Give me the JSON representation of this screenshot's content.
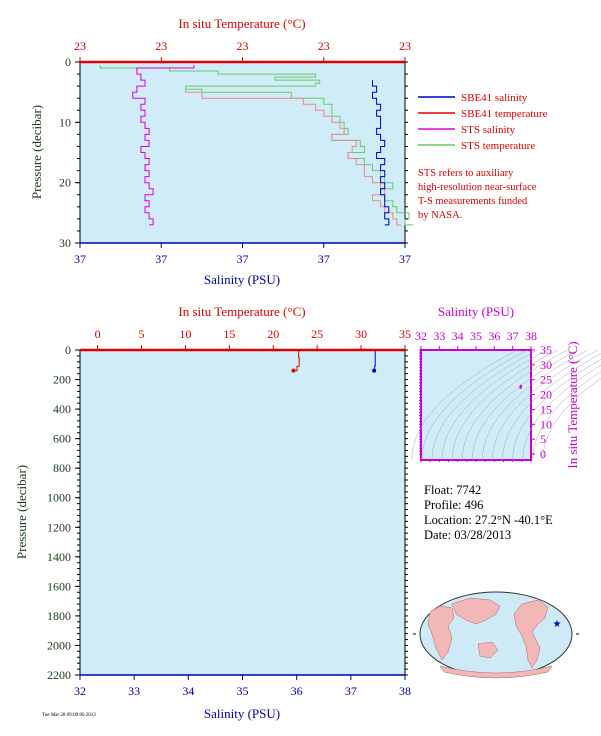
{
  "colors": {
    "sbe_salinity": "#0000cc",
    "sbe_temperature": "#dd0000",
    "sts_salinity": "#dd00dd",
    "sts_temperature": "#66cc66",
    "plot_bg": "#d0ecf8",
    "temp_axis": "#dd0000",
    "sal_axis": "#0000aa",
    "ts_axis": "#cc00cc",
    "land": "#f2b8b8",
    "ocean": "#cfeaf7"
  },
  "legend": {
    "items": [
      {
        "label": "SBE41 salinity",
        "color": "#0000cc"
      },
      {
        "label": "SBE41 temperature",
        "color": "#dd0000"
      },
      {
        "label": "STS salinity",
        "color": "#dd00dd"
      },
      {
        "label": "STS temperature",
        "color": "#66cc66"
      }
    ],
    "note_lines": [
      "STS refers to auxiliary",
      "high-resolution near-surface",
      "T-S measurements funded",
      "by NASA."
    ]
  },
  "info": {
    "float": "Float:  7742",
    "profile": "Profile:  496",
    "location": "Location:  27.2°N  -40.1°E",
    "date": "Date:  03/28/2013"
  },
  "footer_text": "Tue Mar 28 09:00:00 2013",
  "chart_data": [
    {
      "type": "line",
      "name": "near-surface profile",
      "top_axis_label": "In situ Temperature (°C)",
      "top_ticks": [
        "23",
        "23",
        "23",
        "23",
        "23"
      ],
      "bottom_axis_label": "Salinity (PSU)",
      "bottom_ticks": [
        "37",
        "37",
        "37",
        "37",
        "37"
      ],
      "ylabel": "Pressure (decibar)",
      "yticks": [
        "0",
        "10",
        "20",
        "30"
      ],
      "ylim": [
        30,
        0
      ],
      "temp_range": [
        22.4,
        23.2
      ],
      "sal_range": [
        36.6,
        37.4
      ],
      "series": [
        {
          "name": "STS temperature",
          "axis": "temp",
          "color": "#66cc66",
          "p": [
            0.5,
            1,
            1.5,
            2,
            2.5,
            3,
            3.5,
            4,
            4.5,
            5,
            6,
            7,
            8,
            9,
            10,
            11,
            12,
            13,
            14,
            15,
            16,
            17,
            18,
            19,
            20,
            21,
            22,
            23,
            24,
            25,
            26,
            27
          ],
          "v": [
            22.45,
            22.62,
            22.74,
            22.98,
            22.88,
            22.99,
            22.98,
            22.66,
            22.7,
            22.92,
            23.0,
            23.02,
            23.02,
            23.04,
            23.05,
            23.06,
            23.02,
            23.09,
            23.1,
            23.06,
            23.1,
            23.12,
            23.14,
            23.15,
            23.17,
            23.14,
            23.15,
            23.17,
            23.18,
            23.21,
            23.2,
            23.22
          ]
        },
        {
          "name": "SBE41 temperature",
          "axis": "temp",
          "color": "#ee8888",
          "p": [
            4.5,
            5,
            6,
            7,
            8,
            9,
            10,
            11,
            12,
            13,
            14,
            15,
            16,
            17,
            18,
            19,
            20,
            21,
            22,
            23,
            24,
            25,
            26,
            27
          ],
          "v": [
            22.66,
            22.7,
            22.95,
            22.98,
            23.0,
            23.02,
            23.04,
            23.05,
            23.02,
            23.08,
            23.07,
            23.06,
            23.08,
            23.1,
            23.1,
            23.12,
            23.14,
            23.15,
            23.12,
            23.14,
            23.15,
            23.17,
            23.18,
            23.19
          ]
        },
        {
          "name": "STS salinity",
          "axis": "sal",
          "color": "#dd00dd",
          "p": [
            0.5,
            1,
            2,
            3,
            4,
            5,
            6,
            7,
            8,
            9,
            10,
            11,
            12,
            13,
            14,
            15,
            16,
            17,
            18,
            19,
            20,
            21,
            22,
            23,
            24,
            25,
            26,
            27
          ],
          "v": [
            36.88,
            36.74,
            36.75,
            36.76,
            36.74,
            36.73,
            36.76,
            36.75,
            36.76,
            36.75,
            36.76,
            36.77,
            36.76,
            36.77,
            36.75,
            36.76,
            36.77,
            36.76,
            36.77,
            36.76,
            36.77,
            36.78,
            36.76,
            36.77,
            36.76,
            36.77,
            36.78,
            36.77
          ]
        },
        {
          "name": "SBE41 salinity",
          "axis": "sal",
          "color": "#0000cc",
          "p": [
            3,
            4,
            5,
            6,
            7,
            8,
            9,
            10,
            11,
            12,
            13,
            14,
            15,
            16,
            17,
            18,
            19,
            20,
            21,
            22,
            23,
            24,
            25,
            26,
            27
          ],
          "v": [
            37.32,
            37.33,
            37.32,
            37.33,
            37.34,
            37.33,
            37.34,
            37.34,
            37.33,
            37.34,
            37.35,
            37.34,
            37.33,
            37.35,
            37.34,
            37.35,
            37.34,
            37.35,
            37.34,
            37.35,
            37.35,
            37.36,
            37.35,
            37.36,
            37.35
          ]
        }
      ]
    },
    {
      "type": "line",
      "name": "full profile",
      "top_axis_label": "In situ Temperature (°C)",
      "top_ticks": [
        "0",
        "5",
        "10",
        "15",
        "20",
        "25",
        "30",
        "35"
      ],
      "bottom_axis_label": "Salinity (PSU)",
      "bottom_ticks": [
        "32",
        "33",
        "34",
        "35",
        "36",
        "37",
        "38"
      ],
      "ylabel": "Pressure (decibar)",
      "yticks": [
        "0",
        "200",
        "400",
        "600",
        "800",
        "1000",
        "1200",
        "1400",
        "1600",
        "1800",
        "2000",
        "2200"
      ],
      "ylim": [
        2200,
        0
      ],
      "temp_range": [
        -2,
        35
      ],
      "sal_range": [
        32,
        38
      ],
      "series": [
        {
          "name": "SBE41 temperature",
          "axis": "temp",
          "color": "#dd0000",
          "p": [
            0,
            20,
            50,
            80,
            110,
            140
          ],
          "v": [
            22.9,
            22.9,
            22.95,
            22.95,
            22.7,
            22.3
          ]
        },
        {
          "name": "SBE41 salinity",
          "axis": "sal",
          "color": "#0000cc",
          "p": [
            0,
            20,
            50,
            80,
            110,
            140
          ],
          "v": [
            37.45,
            37.45,
            37.45,
            37.45,
            37.44,
            37.43
          ]
        }
      ]
    },
    {
      "type": "scatter",
      "name": "T-S diagram",
      "top_axis_label": "Salinity (PSU)",
      "top_ticks": [
        "32",
        "33",
        "34",
        "35",
        "36",
        "37",
        "38"
      ],
      "right_axis_label": "In situ Temperature (°C)",
      "right_ticks": [
        "0",
        "5",
        "10",
        "15",
        "20",
        "25",
        "30",
        "35"
      ],
      "xlim": [
        32,
        38
      ],
      "ylim": [
        -2,
        35
      ],
      "points": [
        [
          37.45,
          22.9
        ],
        [
          37.44,
          22.7
        ],
        [
          37.43,
          22.3
        ]
      ]
    }
  ],
  "map": {
    "marker_lat": 27.2,
    "marker_lon": -40.1,
    "marker_label": "float-position"
  }
}
